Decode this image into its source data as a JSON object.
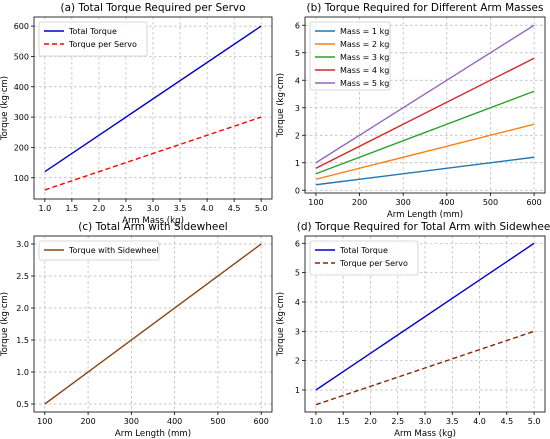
{
  "chart_data": [
    {
      "type": "line",
      "title": "(a) Total Torque Required per Servo",
      "xlabel": "Arm Mass (kg)",
      "ylabel": "Torque (kg·cm)",
      "xlim": [
        0.8,
        5.2
      ],
      "ylim": [
        30,
        630
      ],
      "xticks": [
        1.0,
        1.5,
        2.0,
        2.5,
        3.0,
        3.5,
        4.0,
        4.5,
        5.0
      ],
      "xtick_labels": [
        "1.0",
        "1.5",
        "2.0",
        "2.5",
        "3.0",
        "3.5",
        "4.0",
        "4.5",
        "5.0"
      ],
      "yticks": [
        100,
        200,
        300,
        400,
        500,
        600
      ],
      "ytick_labels": [
        "100",
        "200",
        "300",
        "400",
        "500",
        "600"
      ],
      "grid": true,
      "legend": "upper-left",
      "x": [
        1,
        5
      ],
      "series": [
        {
          "name": "Total Torque",
          "values": [
            120,
            600
          ],
          "color": "#0000cc",
          "dash": "solid"
        },
        {
          "name": "Torque per Servo",
          "values": [
            60,
            300
          ],
          "color": "#ff0000",
          "dash": "dashed"
        }
      ]
    },
    {
      "type": "line",
      "title": "(b) Torque Required for Different Arm Masses",
      "xlabel": "Arm Length (mm)",
      "ylabel": "Torque (kg·cm)",
      "xlim": [
        75,
        625
      ],
      "ylim": [
        -0.1,
        6.3
      ],
      "xticks": [
        100,
        200,
        300,
        400,
        500,
        600
      ],
      "xtick_labels": [
        "100",
        "200",
        "300",
        "400",
        "500",
        "600"
      ],
      "yticks": [
        0,
        1,
        2,
        3,
        4,
        5,
        6
      ],
      "ytick_labels": [
        "0",
        "1",
        "2",
        "3",
        "4",
        "5",
        "6"
      ],
      "grid": true,
      "legend": "upper-left",
      "x": [
        100,
        600
      ],
      "series": [
        {
          "name": "Mass = 1 kg",
          "values": [
            0.2,
            1.2
          ],
          "color": "#1f77b4",
          "dash": "solid"
        },
        {
          "name": "Mass = 2 kg",
          "values": [
            0.4,
            2.4
          ],
          "color": "#ff7f0e",
          "dash": "solid"
        },
        {
          "name": "Mass = 3 kg",
          "values": [
            0.6,
            3.6
          ],
          "color": "#2ca02c",
          "dash": "solid"
        },
        {
          "name": "Mass = 4 kg",
          "values": [
            0.8,
            4.8
          ],
          "color": "#d62728",
          "dash": "solid"
        },
        {
          "name": "Mass = 5 kg",
          "values": [
            1.0,
            6.0
          ],
          "color": "#9467bd",
          "dash": "solid"
        }
      ]
    },
    {
      "type": "line",
      "title": "(c) Total Arm with Sidewheel",
      "xlabel": "Arm Length (mm)",
      "ylabel": "Torque (kg·cm)",
      "xlim": [
        75,
        625
      ],
      "ylim": [
        0.375,
        3.125
      ],
      "xticks": [
        100,
        200,
        300,
        400,
        500,
        600
      ],
      "xtick_labels": [
        "100",
        "200",
        "300",
        "400",
        "500",
        "600"
      ],
      "yticks": [
        0.5,
        1.0,
        1.5,
        2.0,
        2.5,
        3.0
      ],
      "ytick_labels": [
        "0.5",
        "1.0",
        "1.5",
        "2.0",
        "2.5",
        "3.0"
      ],
      "grid": true,
      "legend": "upper-left",
      "x": [
        100,
        600
      ],
      "series": [
        {
          "name": "Torque with Sidewheel",
          "values": [
            0.5,
            3.0
          ],
          "color": "#8b4513",
          "dash": "solid"
        }
      ]
    },
    {
      "type": "line",
      "title": "(d) Torque Required for Total Arm with Sidewheel",
      "xlabel": "Arm Mass (kg)",
      "ylabel": "Torque (kg·cm)",
      "xlim": [
        0.8,
        5.2
      ],
      "ylim": [
        0.25,
        6.25
      ],
      "xticks": [
        1.0,
        1.5,
        2.0,
        2.5,
        3.0,
        3.5,
        4.0,
        4.5,
        5.0
      ],
      "xtick_labels": [
        "1.0",
        "1.5",
        "2.0",
        "2.5",
        "3.0",
        "3.5",
        "4.0",
        "4.5",
        "5.0"
      ],
      "yticks": [
        1,
        2,
        3,
        4,
        5,
        6
      ],
      "ytick_labels": [
        "1",
        "2",
        "3",
        "4",
        "5",
        "6"
      ],
      "grid": true,
      "legend": "upper-left",
      "x": [
        1,
        5
      ],
      "series": [
        {
          "name": "Total Torque",
          "values": [
            1.0,
            6.0
          ],
          "color": "#0000cc",
          "dash": "solid"
        },
        {
          "name": "Torque per Servo",
          "values": [
            0.5,
            3.0
          ],
          "color": "#8b2500",
          "dash": "dashed"
        }
      ]
    }
  ]
}
